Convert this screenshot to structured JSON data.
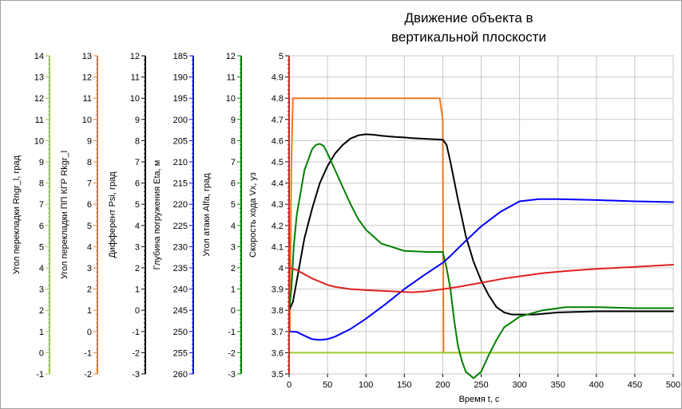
{
  "chart_data": {
    "type": "line",
    "title": [
      "Движение объекта в",
      "вертикальной плоскости"
    ],
    "xlabel": "Время t, с",
    "xlim": [
      0,
      500
    ],
    "xticks": [
      0,
      50,
      100,
      150,
      200,
      250,
      300,
      350,
      400,
      450,
      500
    ],
    "grid": true,
    "axes": [
      {
        "id": "rngr",
        "label": "Угол перекладки Rngr_l, град",
        "color": "#9acd32",
        "range": [
          -1,
          14
        ],
        "ticks": [
          -1,
          0,
          1,
          2,
          3,
          4,
          5,
          6,
          7,
          8,
          9,
          10,
          11,
          12,
          13,
          14
        ]
      },
      {
        "id": "rkgr",
        "label": "Угол перекладки ПП КГР Rkgr_l",
        "color": "#f07820",
        "range": [
          -2,
          13
        ],
        "ticks": [
          -2,
          -1,
          0,
          1,
          2,
          3,
          4,
          5,
          6,
          7,
          8,
          9,
          10,
          11,
          12,
          13
        ]
      },
      {
        "id": "psi",
        "label": "Дифферент Psi, град",
        "color": "#000000",
        "range": [
          -3,
          12
        ],
        "ticks": [
          -3,
          -2,
          -1,
          0,
          1,
          2,
          3,
          4,
          5,
          6,
          7,
          8,
          9,
          10,
          11,
          12
        ]
      },
      {
        "id": "eta",
        "label": "Глубина погружения Eta, м",
        "color": "#0000ff",
        "range": [
          260,
          185
        ],
        "ticks": [
          185,
          190,
          195,
          200,
          205,
          210,
          215,
          220,
          225,
          230,
          235,
          240,
          245,
          250,
          255,
          260
        ]
      },
      {
        "id": "alfa",
        "label": "Угол атаки Alfa, град",
        "color": "#008000",
        "range": [
          -3,
          12
        ],
        "ticks": [
          -3,
          -2,
          -1,
          0,
          1,
          2,
          3,
          4,
          5,
          6,
          7,
          8,
          9,
          10,
          11,
          12
        ]
      },
      {
        "id": "vx",
        "label": "Скорость хода Vx, уз",
        "color": "#e02020",
        "range": [
          3.5,
          5
        ],
        "ticks": [
          "3.5",
          "3.6",
          "3.7",
          "3.8",
          "3.9",
          "4",
          "4.1",
          "4.2",
          "4.3",
          "4.4",
          "4.5",
          "4.6",
          "4.7",
          "4.8",
          "4.9",
          "5"
        ]
      }
    ],
    "series": [
      {
        "axis": "rkgr",
        "color": "#f07820",
        "x": [
          0,
          1,
          3,
          5,
          196,
          200,
          201,
          500
        ],
        "y": [
          0,
          0,
          8,
          11,
          11,
          10,
          -1,
          -1
        ]
      },
      {
        "axis": "rngr",
        "color": "#9acd32",
        "x": [
          0,
          500
        ],
        "y": [
          0,
          0
        ]
      },
      {
        "axis": "psi",
        "color": "#000000",
        "x": [
          0,
          5,
          10,
          20,
          30,
          40,
          50,
          60,
          70,
          80,
          90,
          100,
          110,
          120,
          130,
          140,
          150,
          160,
          170,
          180,
          190,
          200,
          205,
          210,
          220,
          230,
          240,
          250,
          260,
          270,
          280,
          290,
          300,
          320,
          350,
          400,
          450,
          500
        ],
        "y": [
          0,
          0.4,
          1.4,
          3.4,
          4.8,
          6.0,
          6.8,
          7.4,
          7.8,
          8.1,
          8.25,
          8.3,
          8.28,
          8.23,
          8.2,
          8.17,
          8.15,
          8.12,
          8.1,
          8.08,
          8.06,
          8.05,
          7.8,
          7.0,
          5.2,
          3.5,
          2.3,
          1.4,
          0.7,
          0.15,
          -0.1,
          -0.2,
          -0.2,
          -0.2,
          -0.1,
          -0.05,
          -0.05,
          -0.05
        ]
      },
      {
        "axis": "alfa",
        "color": "#008000",
        "x": [
          0,
          3,
          6,
          10,
          20,
          30,
          35,
          40,
          45,
          50,
          60,
          70,
          80,
          90,
          100,
          120,
          150,
          180,
          200,
          205,
          210,
          215,
          220,
          225,
          230,
          240,
          250,
          260,
          270,
          280,
          300,
          330,
          360,
          400,
          450,
          500
        ],
        "y": [
          0,
          1,
          3,
          4.5,
          6.6,
          7.6,
          7.8,
          7.85,
          7.75,
          7.4,
          6.6,
          5.8,
          5.0,
          4.3,
          3.8,
          3.15,
          2.8,
          2.75,
          2.75,
          2.0,
          1.0,
          -0.5,
          -1.7,
          -2.4,
          -2.9,
          -3.2,
          -2.9,
          -2.1,
          -1.4,
          -0.8,
          -0.3,
          0.0,
          0.15,
          0.15,
          0.1,
          0.1
        ]
      },
      {
        "axis": "eta",
        "color": "#0000ff",
        "x": [
          0,
          10,
          20,
          30,
          40,
          50,
          60,
          70,
          80,
          90,
          100,
          125,
          150,
          175,
          200,
          210,
          225,
          250,
          275,
          300,
          325,
          350,
          400,
          450,
          500
        ],
        "y": [
          250,
          250.1,
          251,
          251.8,
          252,
          251.8,
          251.2,
          250.3,
          249.4,
          248.2,
          247,
          243.6,
          240,
          236.8,
          233.8,
          232.2,
          229.5,
          225.2,
          221.8,
          219.3,
          218.8,
          218.8,
          219,
          219.3,
          219.5
        ]
      },
      {
        "axis": "vx",
        "color": "#e02020",
        "x": [
          0,
          10,
          20,
          30,
          40,
          50,
          60,
          70,
          80,
          100,
          130,
          160,
          180,
          200,
          220,
          250,
          280,
          300,
          330,
          360,
          400,
          450,
          500
        ],
        "y": [
          4.0,
          3.99,
          3.97,
          3.95,
          3.935,
          3.92,
          3.91,
          3.905,
          3.9,
          3.895,
          3.89,
          3.885,
          3.89,
          3.9,
          3.91,
          3.93,
          3.95,
          3.96,
          3.975,
          3.985,
          3.995,
          4.005,
          4.015
        ]
      }
    ]
  }
}
